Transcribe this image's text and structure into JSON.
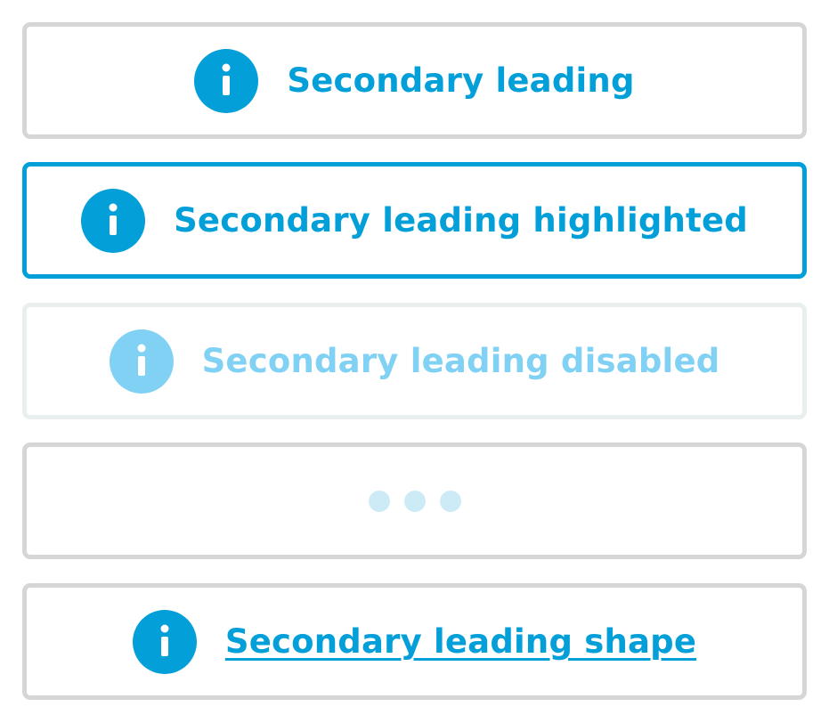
{
  "colors": {
    "primary": "#039fd9",
    "disabled": "#80d1f4",
    "loading_dot": "#cdeaf7",
    "border_default": "#d6d6d6",
    "border_disabled": "#e9eeef"
  },
  "buttons": [
    {
      "state": "default",
      "label": "Secondary leading",
      "icon": "info-icon"
    },
    {
      "state": "highlighted",
      "label": "Secondary leading highlighted",
      "icon": "info-icon"
    },
    {
      "state": "disabled",
      "label": "Secondary leading disabled",
      "icon": "info-icon"
    },
    {
      "state": "loading",
      "label": "",
      "icon": "loading-dots-icon"
    },
    {
      "state": "shape",
      "label": "Secondary leading shape",
      "icon": "info-icon"
    }
  ]
}
